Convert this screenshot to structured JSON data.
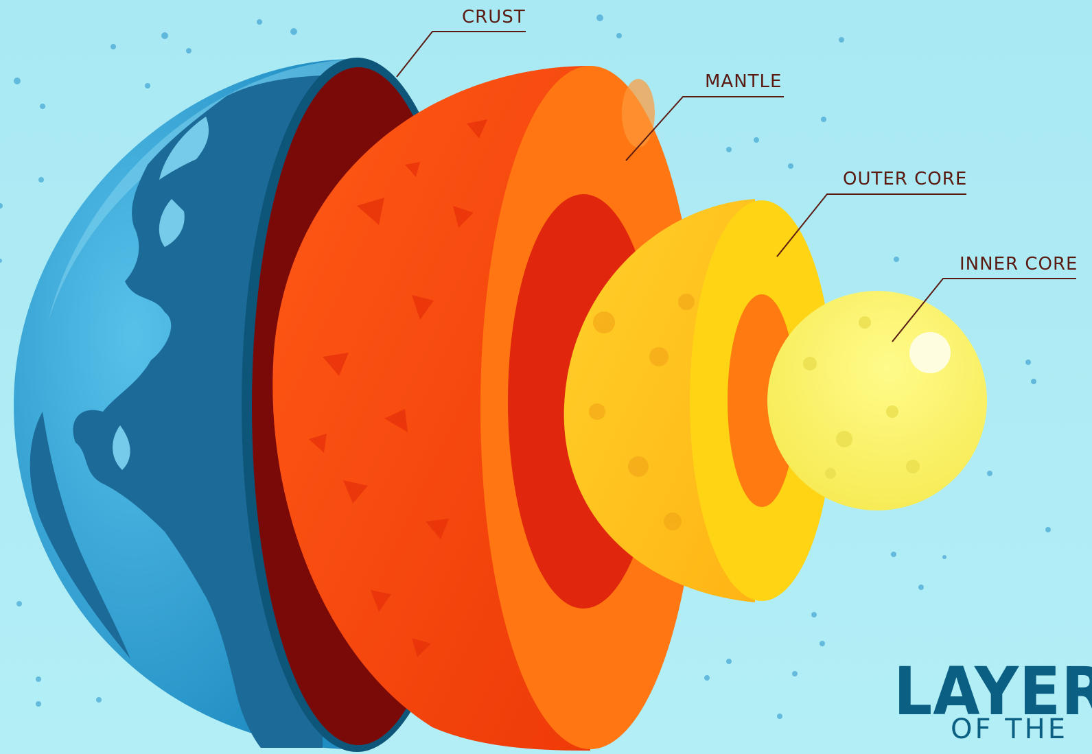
{
  "labels": {
    "crust": "CRUST",
    "mantle": "MANTLE",
    "outer_core": "OUTER CORE",
    "inner_core": "INNER CORE"
  },
  "title": {
    "main": "LAYER",
    "sub": "OF THE"
  },
  "colors": {
    "background": "#aee9f3",
    "ocean": "#3aa6d8",
    "land": "#1d6f9e",
    "crust": "#7a0a08",
    "mantle": "#ff4a12",
    "mantle_inner": "#ff7a10",
    "outer_core": "#ffc21a",
    "inner_core": "#fbf56a",
    "label_text": "#5a1a12",
    "title_text": "#0b5f83"
  },
  "icons": [
    "earth-globe-icon"
  ]
}
